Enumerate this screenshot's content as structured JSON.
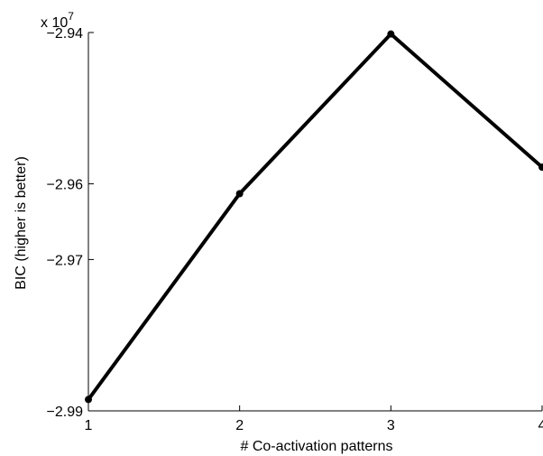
{
  "chart_data": {
    "type": "line",
    "title": "",
    "xlabel": "# Co-activation patterns",
    "ylabel": "BIC (higher is better)",
    "scale_label": "x 10",
    "scale_exponent": "7",
    "x": [
      1,
      2,
      3,
      4
    ],
    "series": [
      {
        "values": [
          -29885000,
          -29613000,
          -29402000,
          -29578000
        ]
      }
    ],
    "xlim": [
      1,
      4
    ],
    "ylim": [
      -29900000,
      -29400000
    ],
    "xticks": [
      {
        "value": 1,
        "label": "1"
      },
      {
        "value": 2,
        "label": "2"
      },
      {
        "value": 3,
        "label": "3"
      },
      {
        "value": 4,
        "label": "4"
      }
    ],
    "yticks": [
      {
        "value": -29400000,
        "label": "−2.94"
      },
      {
        "value": -29600000,
        "label": "−2.96"
      },
      {
        "value": -29700000,
        "label": "−2.97"
      },
      {
        "value": -29900000,
        "label": "−2.99"
      }
    ],
    "grid": false,
    "line_color": "#000000"
  }
}
